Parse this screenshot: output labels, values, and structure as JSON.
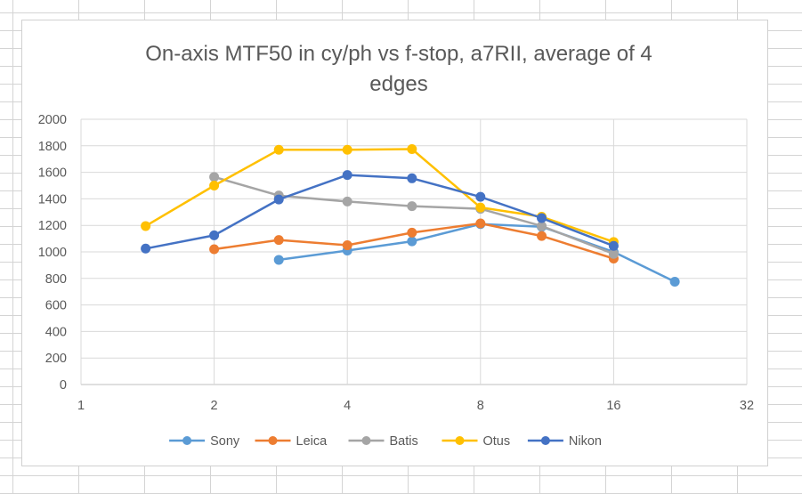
{
  "chart_data": {
    "type": "line",
    "title_lines": [
      "On-axis MTF50 in cy/ph vs f-stop, a7RII, average of 4",
      "edges"
    ],
    "xlabel": "",
    "ylabel": "",
    "x_scale": "log2",
    "xlim": [
      1,
      32
    ],
    "ylim": [
      0,
      2000
    ],
    "x_ticks": [
      1,
      2,
      4,
      8,
      16,
      32
    ],
    "y_ticks": [
      0,
      200,
      400,
      600,
      800,
      1000,
      1200,
      1400,
      1600,
      1800,
      2000
    ],
    "grid": true,
    "legend_position": "bottom",
    "series": [
      {
        "name": "Sony",
        "color": "#5B9BD5",
        "x": [
          2.8,
          4,
          5.6,
          8,
          11,
          16,
          22
        ],
        "y": [
          940,
          1010,
          1080,
          1210,
          1190,
          1000,
          775
        ]
      },
      {
        "name": "Leica",
        "color": "#ED7D31",
        "x": [
          2,
          2.8,
          4,
          5.6,
          8,
          11,
          16
        ],
        "y": [
          1020,
          1090,
          1050,
          1145,
          1215,
          1120,
          950
        ]
      },
      {
        "name": "Batis",
        "color": "#A5A5A5",
        "x": [
          2,
          2.8,
          4,
          5.6,
          8,
          11,
          16
        ],
        "y": [
          1565,
          1425,
          1380,
          1345,
          1325,
          1195,
          985
        ]
      },
      {
        "name": "Otus",
        "color": "#FFC000",
        "x": [
          1.4,
          2,
          2.8,
          4,
          5.6,
          8,
          11,
          16
        ],
        "y": [
          1195,
          1500,
          1770,
          1770,
          1775,
          1335,
          1265,
          1075
        ]
      },
      {
        "name": "Nikon",
        "color": "#4472C4",
        "x": [
          1.4,
          2,
          2.8,
          4,
          5.6,
          8,
          11,
          16
        ],
        "y": [
          1025,
          1125,
          1395,
          1580,
          1555,
          1415,
          1255,
          1045
        ]
      }
    ]
  }
}
